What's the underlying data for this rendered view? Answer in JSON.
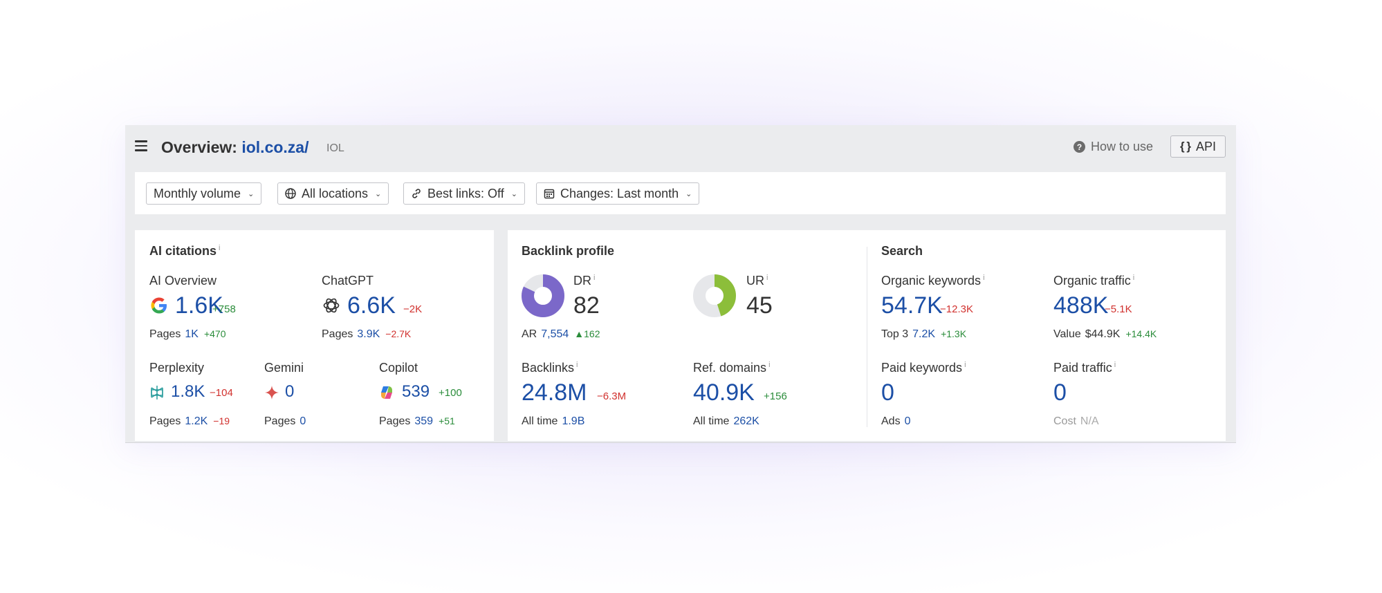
{
  "header": {
    "title_prefix": "Overview:",
    "domain": "iol.co.za/",
    "site_name": "IOL",
    "how_to_use": "How to use",
    "api_label": "API"
  },
  "filters": [
    {
      "label": "Monthly volume",
      "icon": "none"
    },
    {
      "label": "All locations",
      "icon": "globe-icon"
    },
    {
      "label": "Best links: Off",
      "icon": "link-icon"
    },
    {
      "label": "Changes: Last month",
      "icon": "calendar-icon"
    }
  ],
  "ai_citations": {
    "title": "AI citations",
    "ai_overview": {
      "label": "AI Overview",
      "value": "1.6K",
      "delta": "+758",
      "pages_label": "Pages",
      "pages": "1K",
      "pages_delta": "+470"
    },
    "chatgpt": {
      "label": "ChatGPT",
      "value": "6.6K",
      "delta": "−2K",
      "pages_label": "Pages",
      "pages": "3.9K",
      "pages_delta": "−2.7K"
    },
    "perplexity": {
      "label": "Perplexity",
      "value": "1.8K",
      "delta": "−104",
      "pages_label": "Pages",
      "pages": "1.2K",
      "pages_delta": "−19"
    },
    "gemini": {
      "label": "Gemini",
      "value": "0",
      "pages_label": "Pages",
      "pages": "0"
    },
    "copilot": {
      "label": "Copilot",
      "value": "539",
      "delta": "+100",
      "pages_label": "Pages",
      "pages": "359",
      "pages_delta": "+51"
    }
  },
  "backlink_profile": {
    "title": "Backlink profile",
    "dr": {
      "label": "DR",
      "value": "82",
      "ratio": 0.82,
      "color": "#7b68c9"
    },
    "ar": {
      "label": "AR",
      "value": "7,554",
      "delta": "162"
    },
    "ur": {
      "label": "UR",
      "value": "45",
      "ratio": 0.45,
      "color": "#8cbe3a"
    },
    "backlinks": {
      "label": "Backlinks",
      "value": "24.8M",
      "delta": "−6.3M",
      "sub_label": "All time",
      "sub_value": "1.9B"
    },
    "ref_domains": {
      "label": "Ref. domains",
      "value": "40.9K",
      "delta": "+156",
      "sub_label": "All time",
      "sub_value": "262K"
    }
  },
  "search": {
    "title": "Search",
    "organic_keywords": {
      "label": "Organic keywords",
      "value": "54.7K",
      "delta": "−12.3K",
      "sub_label": "Top 3",
      "sub_value": "7.2K",
      "sub_delta": "+1.3K"
    },
    "organic_traffic": {
      "label": "Organic traffic",
      "value": "488K",
      "delta": "−5.1K",
      "sub_label": "Value",
      "sub_value": "$44.9K",
      "sub_delta": "+14.4K"
    },
    "paid_keywords": {
      "label": "Paid keywords",
      "value": "0",
      "sub_label": "Ads",
      "sub_value": "0"
    },
    "paid_traffic": {
      "label": "Paid traffic",
      "value": "0",
      "sub_label": "Cost",
      "sub_value": "N/A"
    }
  },
  "colors": {
    "link_blue": "#1c4fa6",
    "positive": "#2a8c3a",
    "negative": "#d1312e"
  }
}
